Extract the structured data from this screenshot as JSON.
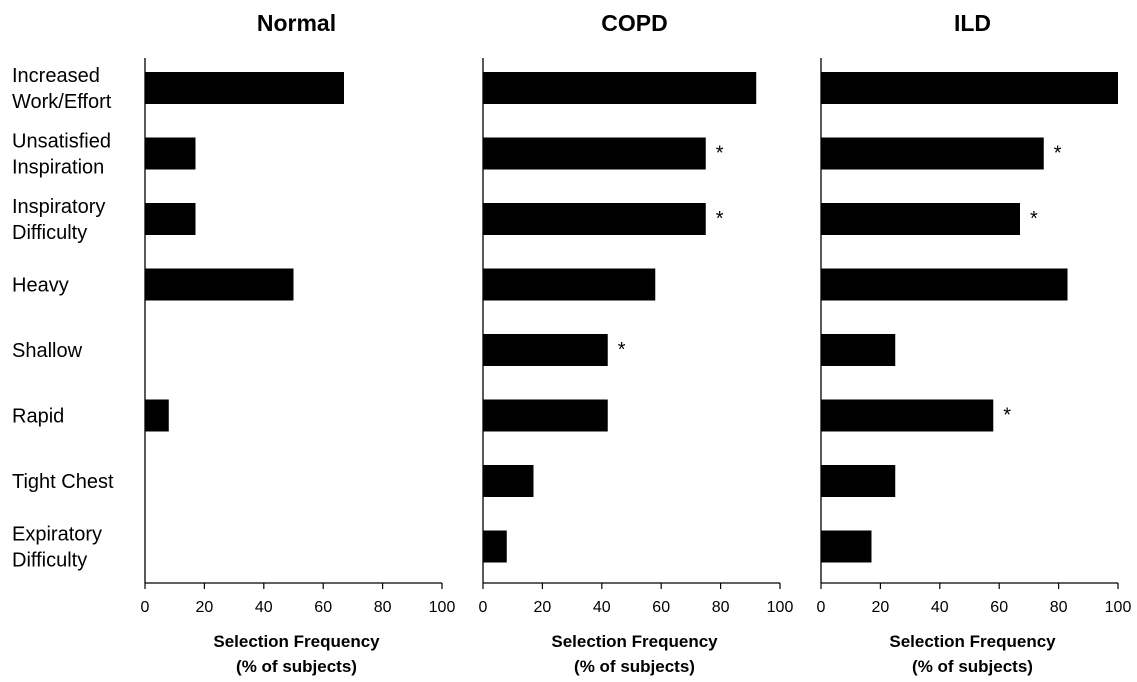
{
  "chart_data": {
    "type": "bar",
    "orientation": "horizontal",
    "categories": [
      [
        "Increased",
        "Work/Effort"
      ],
      [
        "Unsatisfied",
        "Inspiration"
      ],
      [
        "Inspiratory",
        "Difficulty"
      ],
      [
        "Heavy"
      ],
      [
        "Shallow"
      ],
      [
        "Rapid"
      ],
      [
        "Tight Chest"
      ],
      [
        "Expiratory",
        "Difficulty"
      ]
    ],
    "xlim": [
      0,
      100
    ],
    "xticks": [
      0,
      20,
      40,
      60,
      80,
      100
    ],
    "xlabel": [
      "Selection Frequency",
      "(% of subjects)"
    ],
    "bar_color": "#000000",
    "significance_marker": "*",
    "panels": [
      {
        "title": "Normal",
        "values": [
          67,
          17,
          17,
          50,
          0,
          8,
          0,
          0
        ],
        "significant": [
          false,
          false,
          false,
          false,
          false,
          false,
          false,
          false
        ]
      },
      {
        "title": "COPD",
        "values": [
          92,
          75,
          75,
          58,
          42,
          42,
          17,
          8
        ],
        "significant": [
          false,
          true,
          true,
          false,
          true,
          false,
          false,
          false
        ]
      },
      {
        "title": "ILD",
        "values": [
          100,
          75,
          67,
          83,
          25,
          58,
          25,
          17
        ],
        "significant": [
          false,
          true,
          true,
          false,
          false,
          true,
          false,
          false
        ]
      }
    ]
  }
}
